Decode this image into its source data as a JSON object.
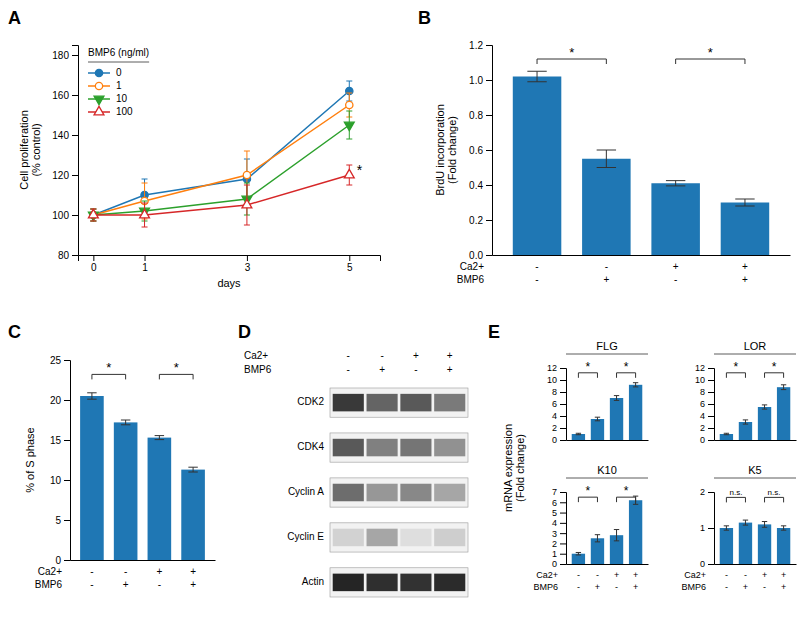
{
  "chart_data": [
    {
      "type": "line",
      "title": "A",
      "xlabel": "days",
      "ylabel": "Cell proliferation\n(% control)",
      "x": [
        0,
        1,
        3,
        5
      ],
      "xlim": [
        -0.3,
        5.6
      ],
      "xticks": [
        0,
        1,
        3,
        5
      ],
      "ylim": [
        80,
        185
      ],
      "yticks": [
        80,
        100,
        120,
        140,
        160,
        180
      ],
      "legend": "upper left",
      "legend_title": "BMP6 (ng/ml)",
      "series": [
        {
          "name": "0",
          "marker": "circle",
          "values": [
            100,
            110,
            118,
            162
          ],
          "errors": [
            3,
            8,
            10,
            5
          ]
        },
        {
          "name": "1",
          "marker": "circle-open",
          "values": [
            100,
            107,
            120,
            155
          ],
          "errors": [
            3,
            9,
            12,
            6
          ]
        },
        {
          "name": "10",
          "marker": "triangle-down",
          "values": [
            100,
            102,
            108,
            145
          ],
          "errors": [
            3,
            5,
            8,
            7
          ]
        },
        {
          "name": "100",
          "marker": "triangle-up-open",
          "values": [
            100,
            100,
            105,
            120
          ],
          "errors": [
            3,
            6,
            10,
            5
          ]
        }
      ],
      "annotations": [
        {
          "text": "*",
          "x": 5.05,
          "y": 122
        }
      ]
    },
    {
      "type": "bar",
      "title": "B",
      "ylabel": "BrdU incorporation\n(Fold change)",
      "categories": [
        null,
        null,
        null,
        null
      ],
      "category_rows": [
        {
          "name": "Ca2+",
          "labels": [
            "-",
            "-",
            "+",
            "+"
          ]
        },
        {
          "name": "BMP6",
          "labels": [
            "-",
            "+",
            "-",
            "+"
          ]
        }
      ],
      "values": [
        1.02,
        0.55,
        0.41,
        0.3
      ],
      "errors": [
        0.03,
        0.05,
        0.015,
        0.02
      ],
      "ylim": [
        0,
        1.2
      ],
      "yticks": [
        {
          "value": 0.0,
          "label": "0.0"
        },
        0.2,
        0.4,
        0.6,
        0.8,
        {
          "value": 1.0,
          "label": "1.0"
        },
        1.2
      ],
      "brackets": [
        {
          "from": 0,
          "to": 1,
          "y": 1.12,
          "label": "*"
        },
        {
          "from": 2,
          "to": 3,
          "y": 1.12,
          "label": "*"
        }
      ]
    },
    {
      "type": "bar",
      "title": "C",
      "ylabel": "% of S phase",
      "categories": [
        null,
        null,
        null,
        null
      ],
      "category_rows": [
        {
          "name": "Ca2+",
          "labels": [
            "-",
            "-",
            "+",
            "+"
          ]
        },
        {
          "name": "BMP6",
          "labels": [
            "-",
            "+",
            "-",
            "+"
          ]
        }
      ],
      "values": [
        20.5,
        17.2,
        15.3,
        11.3
      ],
      "errors": [
        0.4,
        0.3,
        0.25,
        0.3
      ],
      "ylim": [
        0,
        25
      ],
      "yticks": [
        0,
        5,
        10,
        15,
        20,
        25
      ],
      "brackets": [
        {
          "from": 0,
          "to": 1,
          "y": 23.2,
          "label": "*"
        },
        {
          "from": 2,
          "to": 3,
          "y": 23.2,
          "label": "*"
        }
      ]
    },
    {
      "type": "heatmap",
      "title": "D",
      "categories": [
        null,
        null,
        null,
        null
      ],
      "category_rows": [
        {
          "name": "Ca2+",
          "labels": [
            "-",
            "-",
            "+",
            "+"
          ]
        },
        {
          "name": "BMP6",
          "labels": [
            "-",
            "+",
            "-",
            "+"
          ]
        }
      ],
      "rows": [
        "CDK2",
        "CDK4",
        "Cyclin A",
        "Cyclin E",
        "Actin"
      ],
      "cells": [
        [
          0.82,
          0.68,
          0.72,
          0.6
        ],
        [
          0.72,
          0.58,
          0.62,
          0.52
        ],
        [
          0.65,
          0.5,
          0.55,
          0.45
        ],
        [
          0.28,
          0.45,
          0.22,
          0.3
        ],
        [
          0.88,
          0.85,
          0.84,
          0.86
        ]
      ]
    },
    {
      "type": "bar",
      "title": "E",
      "ylabel": "mRNA expression\n(Fold change)",
      "category_rows": [
        {
          "name": "Ca2+",
          "labels": [
            "-",
            "-",
            "+",
            "+"
          ]
        },
        {
          "name": "BMP6",
          "labels": [
            "-",
            "+",
            "-",
            "+"
          ]
        }
      ],
      "panels": [
        {
          "title": "FLG",
          "categories": [
            null,
            null,
            null,
            null
          ],
          "values": [
            1.0,
            3.5,
            7.0,
            9.2
          ],
          "errors": [
            0.12,
            0.3,
            0.4,
            0.35
          ],
          "ylim": [
            0,
            12
          ],
          "yticks": [
            0,
            2,
            4,
            6,
            8,
            10,
            12
          ],
          "brackets": [
            {
              "from": 0,
              "to": 1,
              "y": 11.2,
              "label": "*"
            },
            {
              "from": 2,
              "to": 3,
              "y": 11.2,
              "label": "*"
            }
          ]
        },
        {
          "title": "LOR",
          "categories": [
            null,
            null,
            null,
            null
          ],
          "values": [
            1.0,
            3.0,
            5.5,
            8.8
          ],
          "errors": [
            0.12,
            0.35,
            0.35,
            0.4
          ],
          "ylim": [
            0,
            12
          ],
          "yticks": [
            0,
            2,
            4,
            6,
            8,
            10,
            12
          ],
          "brackets": [
            {
              "from": 0,
              "to": 1,
              "y": 11.2,
              "label": "*"
            },
            {
              "from": 2,
              "to": 3,
              "y": 11.2,
              "label": "*"
            }
          ]
        },
        {
          "title": "K10",
          "categories": [
            null,
            null,
            null,
            null
          ],
          "values": [
            1.0,
            2.5,
            2.8,
            6.2
          ],
          "errors": [
            0.12,
            0.35,
            0.55,
            0.4
          ],
          "ylim": [
            0,
            7
          ],
          "yticks": [
            0,
            1,
            2,
            3,
            4,
            5,
            6,
            7
          ],
          "brackets": [
            {
              "from": 0,
              "to": 1,
              "y": 6.5,
              "label": "*"
            },
            {
              "from": 2,
              "to": 3,
              "y": 6.5,
              "label": "*"
            }
          ]
        },
        {
          "title": "K5",
          "categories": [
            null,
            null,
            null,
            null
          ],
          "values": [
            1.0,
            1.15,
            1.1,
            1.0
          ],
          "errors": [
            0.06,
            0.07,
            0.08,
            0.06
          ],
          "ylim": [
            0,
            2
          ],
          "yticks": [
            0,
            1,
            2
          ],
          "brackets": [
            {
              "from": 0,
              "to": 1,
              "y": 1.85,
              "label": "n.s."
            },
            {
              "from": 2,
              "to": 3,
              "y": 1.85,
              "label": "n.s."
            }
          ]
        }
      ]
    }
  ]
}
